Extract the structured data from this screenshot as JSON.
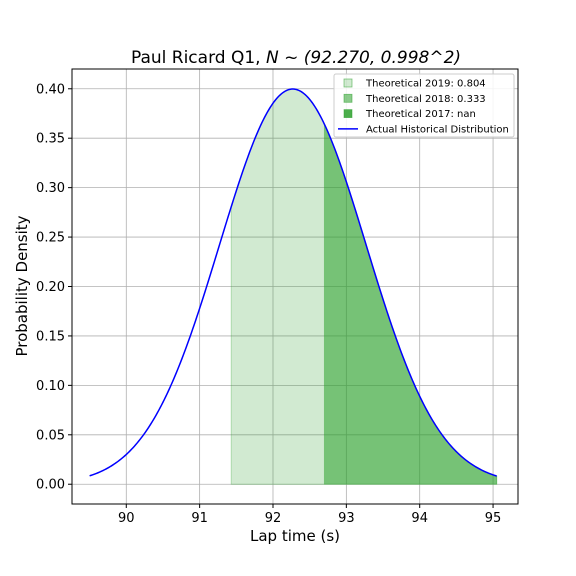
{
  "chart_data": {
    "type": "area",
    "title": "Paul Ricard Q1, N ~ (92.270, 0.998^2)",
    "title_prefix": "Paul Ricard Q1, ",
    "title_math": "N ~ (92.270, 0.998^2)",
    "xlabel": "Lap time (s)",
    "ylabel": "Probability Density",
    "xlim": [
      89.26,
      95.34
    ],
    "ylim": [
      -0.02,
      0.42
    ],
    "x_ticks": [
      90,
      91,
      92,
      93,
      94,
      95
    ],
    "x_tick_labels": [
      "90",
      "91",
      "92",
      "93",
      "94",
      "95"
    ],
    "y_ticks": [
      0.0,
      0.05,
      0.1,
      0.15,
      0.2,
      0.25,
      0.3,
      0.35,
      0.4
    ],
    "y_tick_labels": [
      "0.00",
      "0.05",
      "0.10",
      "0.15",
      "0.20",
      "0.25",
      "0.30",
      "0.35",
      "0.40"
    ],
    "grid": true,
    "legend_position": "top-right",
    "distribution": {
      "mean": 92.27,
      "std": 0.998
    },
    "line_range": [
      89.5,
      95.05
    ],
    "series": [
      {
        "name": "Theoretical 2019: 0.804",
        "kind": "fill",
        "x_from": 91.43,
        "x_to": 95.05,
        "color": "#2ca02c",
        "opacity": 0.22
      },
      {
        "name": "Theoretical 2018: 0.333",
        "kind": "fill",
        "x_from": 92.7,
        "x_to": 95.05,
        "color": "#2ca02c",
        "opacity": 0.55
      },
      {
        "name": "Theoretical 2017: nan",
        "kind": "fill",
        "x_from": null,
        "x_to": null,
        "color": "#2ca02c",
        "opacity": 0.85
      },
      {
        "name": "Actual Historical Distribution",
        "kind": "line",
        "color": "#0000ff"
      }
    ]
  }
}
